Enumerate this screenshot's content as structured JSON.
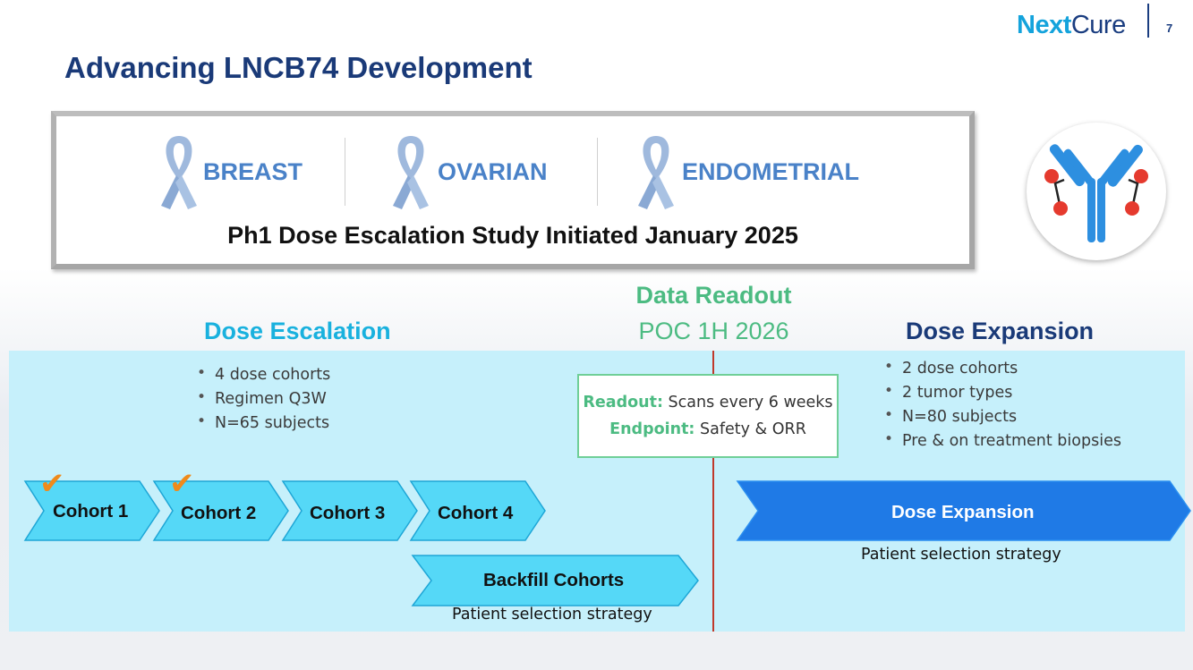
{
  "header": {
    "logo_next": "Next",
    "logo_cure": "Cure",
    "page_number": "7",
    "title": "Advancing LNCB74 Development"
  },
  "indications": [
    {
      "label": "BREAST",
      "icon": "ribbon-icon"
    },
    {
      "label": "OVARIAN",
      "icon": "ribbon-icon"
    },
    {
      "label": "ENDOMETRIAL",
      "icon": "ribbon-icon"
    }
  ],
  "study_status": "Ph1 Dose Escalation Study Initiated January 2025",
  "antibody_icon": "antibody-icon",
  "dose_escalation": {
    "heading": "Dose Escalation",
    "bullets": [
      "4 dose cohorts",
      "Regimen Q3W",
      "N=65 subjects"
    ],
    "cohorts": [
      {
        "label": "Cohort 1",
        "completed": true
      },
      {
        "label": "Cohort 2",
        "completed": true
      },
      {
        "label": "Cohort 3",
        "completed": false
      },
      {
        "label": "Cohort 4",
        "completed": false
      }
    ],
    "backfill_label": "Backfill Cohorts",
    "backfill_caption": "Patient selection strategy"
  },
  "data_readout": {
    "heading": "Data Readout",
    "subheading": "POC 1H 2026",
    "readout_key": "Readout:",
    "readout_value": "Scans every 6 weeks",
    "endpoint_key": "Endpoint:",
    "endpoint_value": "Safety & ORR"
  },
  "dose_expansion": {
    "heading": "Dose Expansion",
    "bullets": [
      "2 dose cohorts",
      "2 tumor types",
      "N=80 subjects",
      "Pre & on treatment biopsies"
    ],
    "arrow_label": "Dose Expansion",
    "caption": "Patient selection strategy"
  },
  "colors": {
    "navy": "#1a3a78",
    "cyan": "#19b1de",
    "green": "#4cbb82",
    "panel": "#c6f0fb",
    "chevron_fill": "#55d8f7",
    "expansion_fill": "#1f7ae6",
    "check": "#ef8a1b",
    "divider_red": "#c0392b"
  }
}
